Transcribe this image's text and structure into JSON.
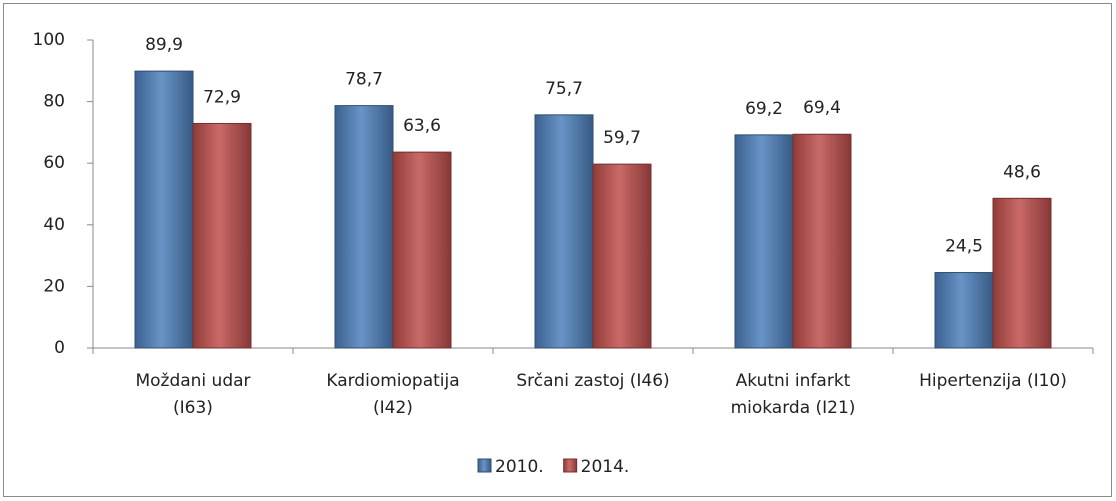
{
  "chart_data": {
    "type": "bar",
    "categories": [
      "Moždani udar\n(I63)",
      "Kardiomiopatija\n(I42)",
      "Srčani zastoj (I46)",
      "Akutni infarkt\nmiokarda (I21)",
      "Hipertenzija (I10)"
    ],
    "series": [
      {
        "name": "2010.",
        "color": "#4f81bd",
        "values": [
          89.9,
          78.7,
          75.7,
          69.2,
          24.5
        ],
        "value_labels": [
          "89,9",
          "78,7",
          "75,7",
          "69,2",
          "24,5"
        ]
      },
      {
        "name": "2014.",
        "color": "#c0504d",
        "values": [
          72.9,
          63.6,
          59.7,
          69.4,
          48.6
        ],
        "value_labels": [
          "72,9",
          "63,6",
          "59,7",
          "69,4",
          "48,6"
        ]
      }
    ],
    "ylim": [
      0,
      100
    ],
    "yticks": [
      0,
      20,
      40,
      60,
      80,
      100
    ],
    "grid": false,
    "legend": "bottom"
  }
}
